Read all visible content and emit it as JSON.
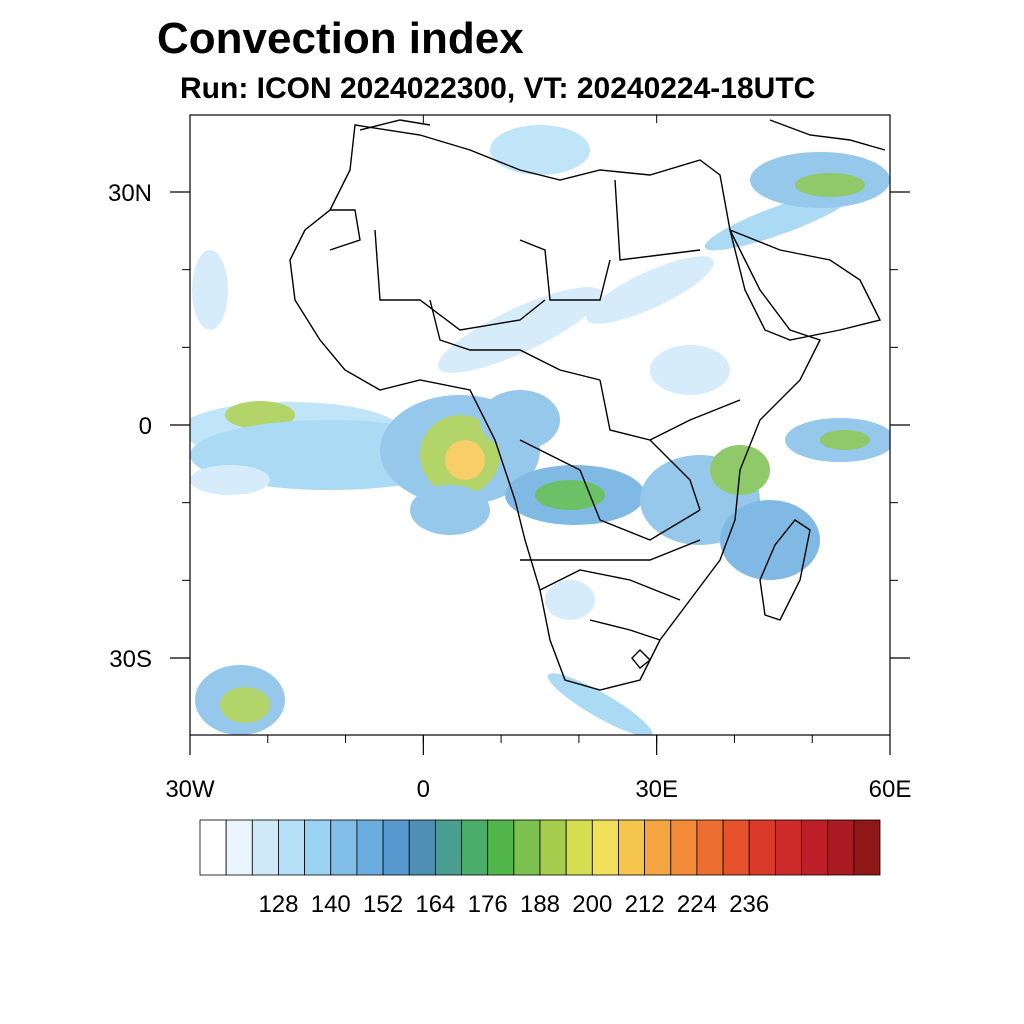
{
  "title": "Convection index",
  "subtitle": "Run: ICON 2024022300,  VT: 20240224-18UTC",
  "map": {
    "lon_range": [
      -30,
      60
    ],
    "lat_range": [
      -40,
      40
    ],
    "x_ticks": [
      {
        "lon": -30,
        "label": "30W"
      },
      {
        "lon": 0,
        "label": "0"
      },
      {
        "lon": 30,
        "label": "30E"
      },
      {
        "lon": 60,
        "label": "60E"
      }
    ],
    "y_ticks": [
      {
        "lat": 30,
        "label": "30N"
      },
      {
        "lat": 0,
        "label": "0"
      },
      {
        "lat": -30,
        "label": "30S"
      }
    ]
  },
  "colorbar": {
    "colors": [
      "#ffffff",
      "#eaf5fd",
      "#cfe9f9",
      "#b5e0f7",
      "#9bd4f3",
      "#82bfe8",
      "#6aaee0",
      "#5699cf",
      "#4f8fb4",
      "#4a9e90",
      "#4aad6a",
      "#52b64c",
      "#7cc04f",
      "#a6cd4e",
      "#d4de50",
      "#f2e05a",
      "#f6c64c",
      "#f5a542",
      "#f28a38",
      "#ee6d30",
      "#e6512b",
      "#da3a29",
      "#cd2a2a",
      "#bd2029",
      "#aa1a22",
      "#8f1717"
    ],
    "labels": [
      "128",
      "140",
      "152",
      "164",
      "176",
      "188",
      "200",
      "212",
      "224",
      "236"
    ]
  }
}
